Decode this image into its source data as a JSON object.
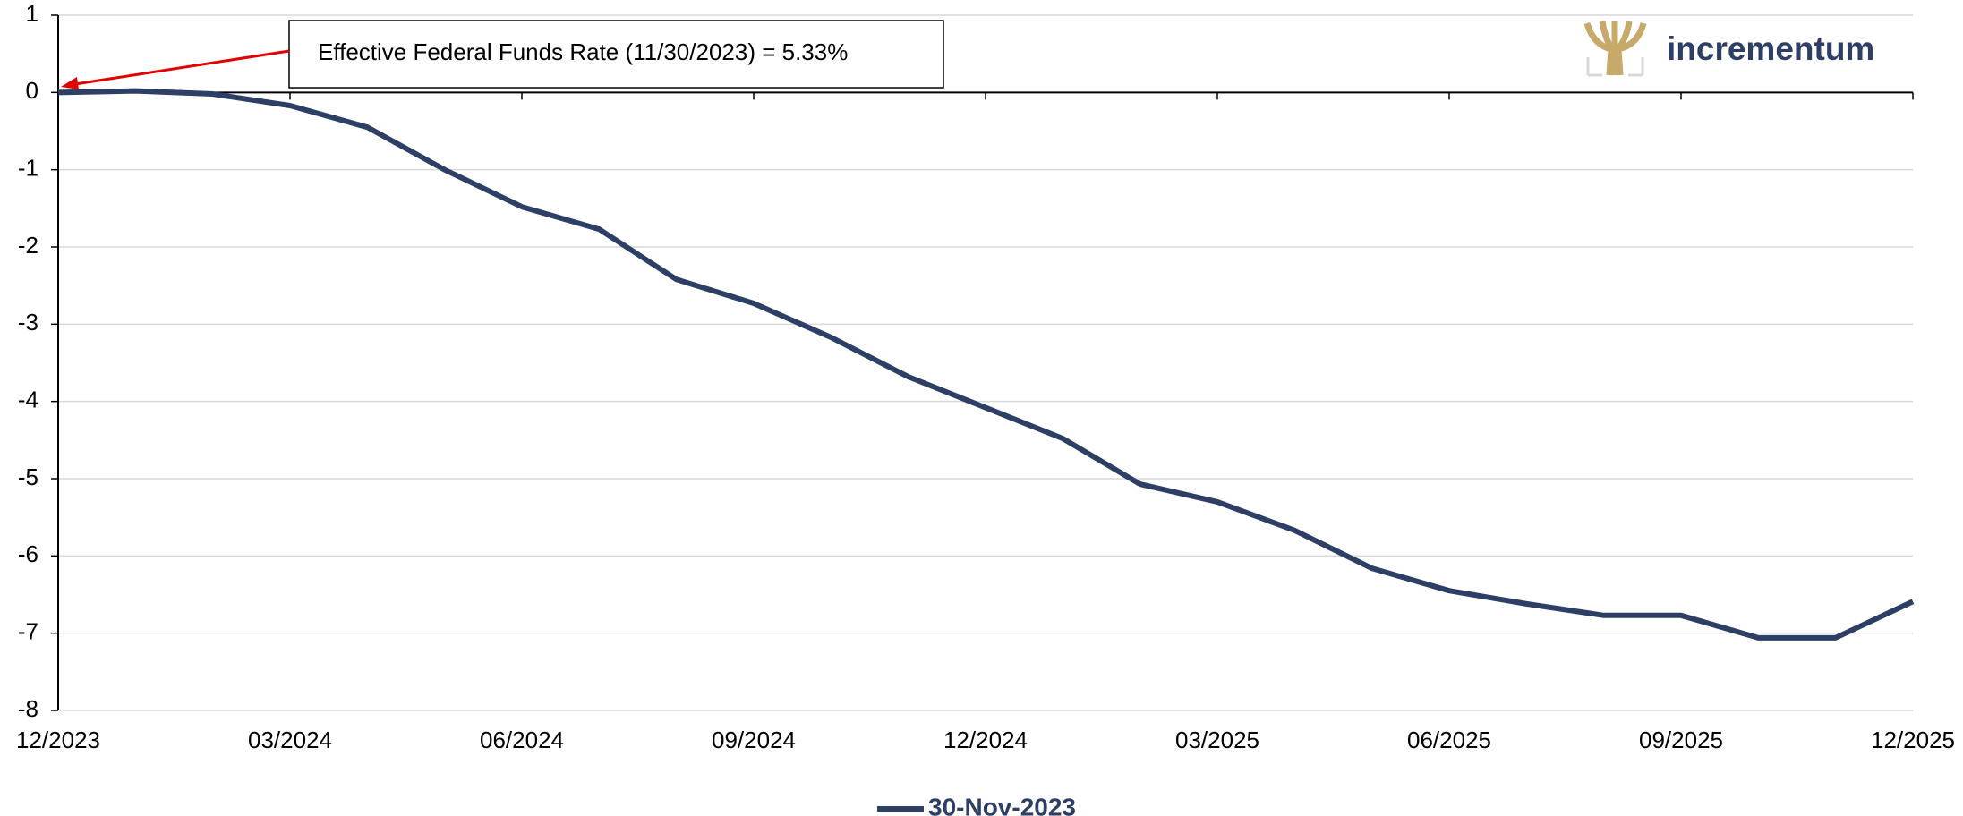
{
  "chart_data": {
    "type": "line",
    "logo": "incrementum",
    "annotation": "Effective Federal Funds Rate (11/30/2023) = 5.33%",
    "categories": [
      "12/2023",
      null,
      null,
      "03/2024",
      null,
      null,
      "06/2024",
      null,
      null,
      "09/2024",
      null,
      null,
      "12/2024",
      null,
      null,
      "03/2025",
      null,
      null,
      "06/2025",
      null,
      null,
      "09/2025",
      null,
      null,
      "12/2025"
    ],
    "series": [
      {
        "name": "30-Nov-2023",
        "color": "#2e3f66",
        "values": [
          0,
          0.02,
          -0.02,
          -0.17,
          -0.45,
          -1.0,
          -1.48,
          -1.77,
          -2.42,
          -2.73,
          -3.17,
          -3.68,
          -4.08,
          -4.48,
          -5.07,
          -5.3,
          -5.67,
          -6.16,
          -6.45,
          -6.62,
          -6.77,
          -6.77,
          -7.06,
          -7.06,
          -6.59
        ]
      }
    ],
    "ylim": [
      -8,
      1
    ],
    "yticks": [
      1,
      0,
      -1,
      -2,
      -3,
      -4,
      -5,
      -6,
      -7,
      -8
    ],
    "grid": true,
    "legend": "bottom"
  }
}
